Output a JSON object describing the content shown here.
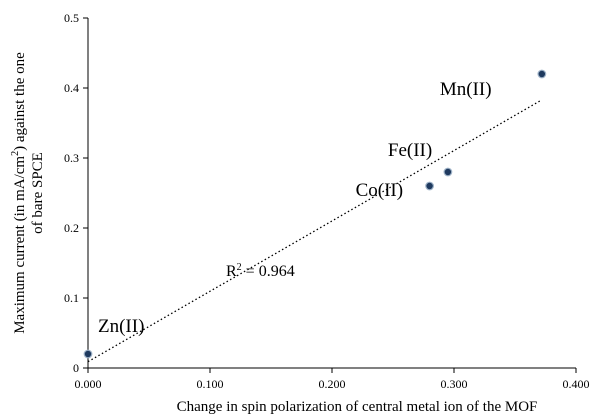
{
  "chart_data": {
    "type": "scatter",
    "xlabel": "Change in spin polarization of central metal ion of the MOF",
    "ylabel_line1": "Maximum current (in mA/cm",
    "ylabel_sup": "2",
    "ylabel_line1_end": ") against the one",
    "ylabel_line2": "of bare SPCE",
    "xlim": [
      0.0,
      0.4
    ],
    "ylim": [
      0.0,
      0.5
    ],
    "x_ticks": [
      "0.000",
      "0.100",
      "0.200",
      "0.300",
      "0.400"
    ],
    "y_ticks": [
      "0",
      "0.1",
      "0.2",
      "0.3",
      "0.4",
      "0.5"
    ],
    "points": [
      {
        "label": "Zn(II)",
        "x": 0.0,
        "y": 0.02
      },
      {
        "label": "Co(II)",
        "x": 0.28,
        "y": 0.26
      },
      {
        "label": "Fe(II)",
        "x": 0.295,
        "y": 0.28
      },
      {
        "label": "Mn(II)",
        "x": 0.372,
        "y": 0.42
      }
    ],
    "trendline": {
      "style": "dotted",
      "x_range": [
        0.0,
        0.372
      ],
      "y_at_start": 0.009,
      "y_at_end": 0.383,
      "r2_prefix": "R",
      "r2_sup": "2",
      "r2_value": " = 0.964"
    },
    "marker_color": "#1f3a5f",
    "grid": false,
    "legend": "none"
  }
}
